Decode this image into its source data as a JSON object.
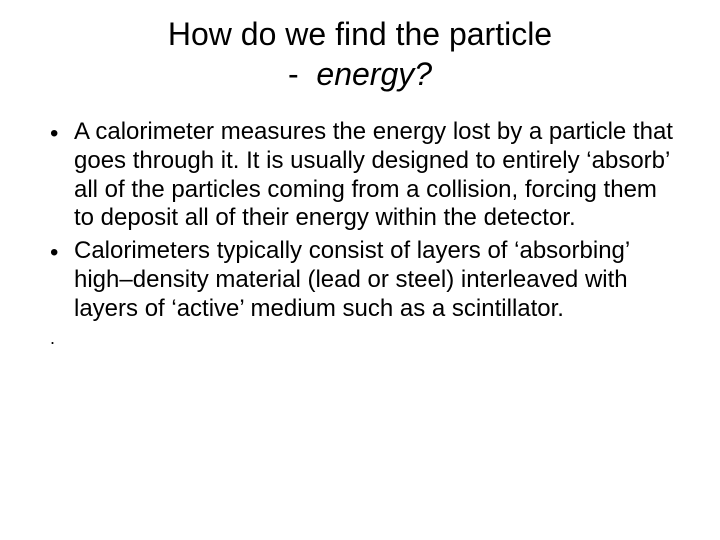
{
  "title": {
    "line1": "How do we find the particle",
    "dash": "-",
    "energy": "energy?"
  },
  "bullets": [
    "A calorimeter measures the energy lost by a particle that goes through it. It is usually designed to entirely ‘absorb’ all of the particles coming from a collision, forcing them to deposit all of their energy within the detector.",
    "Calorimeters typically consist of layers of ‘absorbing’ high–density material (lead or steel) interleaved with layers of ‘active’ medium such as a scintillator."
  ],
  "trailing_dot": "."
}
